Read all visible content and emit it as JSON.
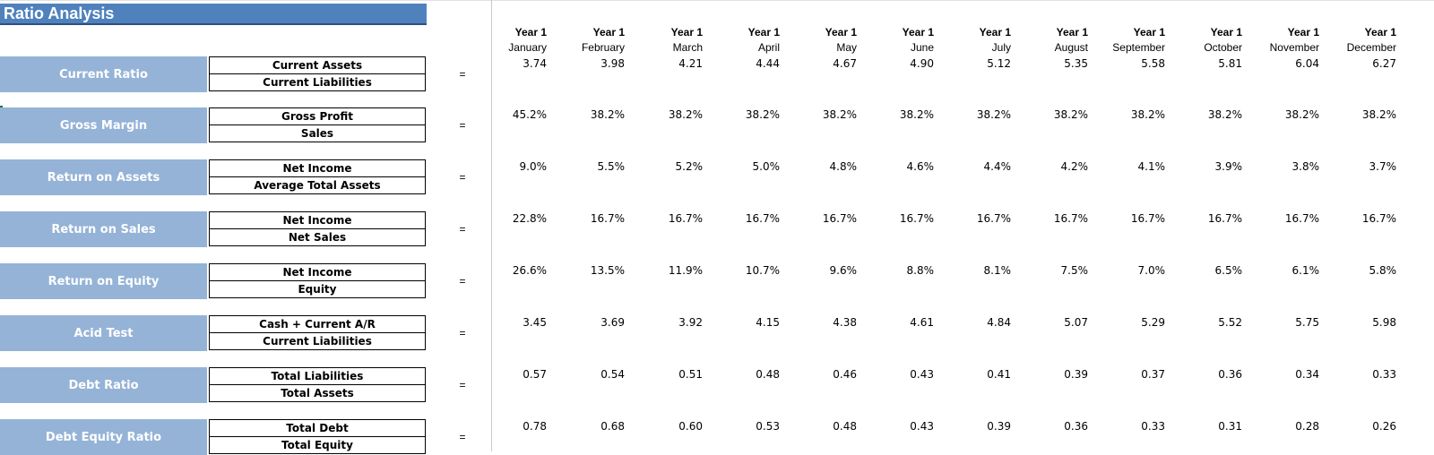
{
  "sheet": {
    "title": "Ratio Analysis"
  },
  "columns": [
    {
      "year": "Year 1",
      "month": "January"
    },
    {
      "year": "Year 1",
      "month": "February"
    },
    {
      "year": "Year 1",
      "month": "March"
    },
    {
      "year": "Year 1",
      "month": "April"
    },
    {
      "year": "Year 1",
      "month": "May"
    },
    {
      "year": "Year 1",
      "month": "June"
    },
    {
      "year": "Year 1",
      "month": "July"
    },
    {
      "year": "Year 1",
      "month": "August"
    },
    {
      "year": "Year 1",
      "month": "September"
    },
    {
      "year": "Year 1",
      "month": "October"
    },
    {
      "year": "Year 1",
      "month": "November"
    },
    {
      "year": "Year 1",
      "month": "December"
    }
  ],
  "equals_sign": "=",
  "ratios": [
    {
      "label": "Current Ratio",
      "numerator": "Current Assets",
      "denominator": "Current Liabilities",
      "values": [
        "3.74",
        "3.98",
        "4.21",
        "4.44",
        "4.67",
        "4.90",
        "5.12",
        "5.35",
        "5.58",
        "5.81",
        "6.04",
        "6.27"
      ]
    },
    {
      "label": "Gross Margin",
      "numerator": "Gross Profit",
      "denominator": "Sales",
      "values": [
        "45.2%",
        "38.2%",
        "38.2%",
        "38.2%",
        "38.2%",
        "38.2%",
        "38.2%",
        "38.2%",
        "38.2%",
        "38.2%",
        "38.2%",
        "38.2%"
      ]
    },
    {
      "label": "Return on Assets",
      "numerator": "Net Income",
      "denominator": "Average Total Assets",
      "values": [
        "9.0%",
        "5.5%",
        "5.2%",
        "5.0%",
        "4.8%",
        "4.6%",
        "4.4%",
        "4.2%",
        "4.1%",
        "3.9%",
        "3.8%",
        "3.7%"
      ]
    },
    {
      "label": "Return on Sales",
      "numerator": "Net Income",
      "denominator": "Net Sales",
      "values": [
        "22.8%",
        "16.7%",
        "16.7%",
        "16.7%",
        "16.7%",
        "16.7%",
        "16.7%",
        "16.7%",
        "16.7%",
        "16.7%",
        "16.7%",
        "16.7%"
      ]
    },
    {
      "label": "Return on Equity",
      "numerator": "Net Income",
      "denominator": "Equity",
      "values": [
        "26.6%",
        "13.5%",
        "11.9%",
        "10.7%",
        "9.6%",
        "8.8%",
        "8.1%",
        "7.5%",
        "7.0%",
        "6.5%",
        "6.1%",
        "5.8%"
      ]
    },
    {
      "label": "Acid Test",
      "numerator": "Cash + Current A/R",
      "denominator": "Current Liabilities",
      "values": [
        "3.45",
        "3.69",
        "3.92",
        "4.15",
        "4.38",
        "4.61",
        "4.84",
        "5.07",
        "5.29",
        "5.52",
        "5.75",
        "5.98"
      ]
    },
    {
      "label": "Debt Ratio",
      "numerator": "Total Liabilities",
      "denominator": "Total Assets",
      "values": [
        "0.57",
        "0.54",
        "0.51",
        "0.48",
        "0.46",
        "0.43",
        "0.41",
        "0.39",
        "0.37",
        "0.36",
        "0.34",
        "0.33"
      ]
    },
    {
      "label": "Debt Equity Ratio",
      "numerator": "Total Debt",
      "denominator": "Total Equity",
      "values": [
        "0.78",
        "0.68",
        "0.60",
        "0.53",
        "0.48",
        "0.43",
        "0.39",
        "0.36",
        "0.33",
        "0.31",
        "0.28",
        "0.26"
      ]
    }
  ]
}
